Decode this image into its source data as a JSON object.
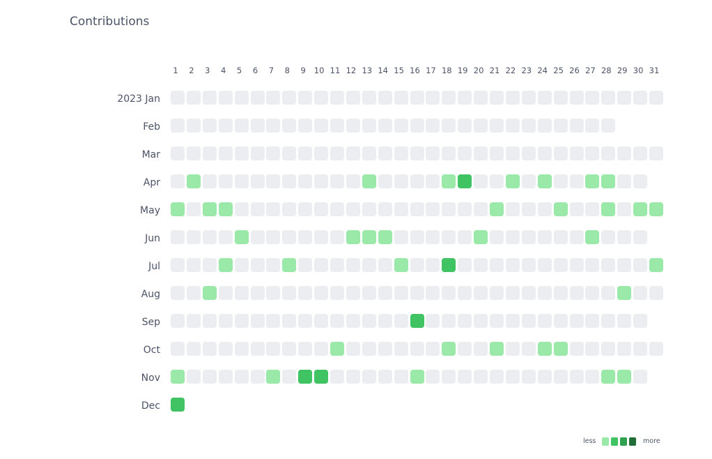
{
  "title": "Contributions",
  "days": [
    "1",
    "2",
    "3",
    "4",
    "5",
    "6",
    "7",
    "8",
    "9",
    "10",
    "11",
    "12",
    "13",
    "14",
    "15",
    "16",
    "17",
    "18",
    "19",
    "20",
    "21",
    "22",
    "23",
    "24",
    "25",
    "26",
    "27",
    "28",
    "29",
    "30",
    "31"
  ],
  "level_colors": [
    "#ebedf0",
    "#9be9a8",
    "#40c463",
    "#30a14e",
    "#216e39"
  ],
  "months": [
    {
      "label": "2023 Jan",
      "levels": [
        0,
        0,
        0,
        0,
        0,
        0,
        0,
        0,
        0,
        0,
        0,
        0,
        0,
        0,
        0,
        0,
        0,
        0,
        0,
        0,
        0,
        0,
        0,
        0,
        0,
        0,
        0,
        0,
        0,
        0,
        0
      ]
    },
    {
      "label": "Feb",
      "levels": [
        0,
        0,
        0,
        0,
        0,
        0,
        0,
        0,
        0,
        0,
        0,
        0,
        0,
        0,
        0,
        0,
        0,
        0,
        0,
        0,
        0,
        0,
        0,
        0,
        0,
        0,
        0,
        0
      ]
    },
    {
      "label": "Mar",
      "levels": [
        0,
        0,
        0,
        0,
        0,
        0,
        0,
        0,
        0,
        0,
        0,
        0,
        0,
        0,
        0,
        0,
        0,
        0,
        0,
        0,
        0,
        0,
        0,
        0,
        0,
        0,
        0,
        0,
        0,
        0,
        0
      ]
    },
    {
      "label": "Apr",
      "levels": [
        0,
        1,
        0,
        0,
        0,
        0,
        0,
        0,
        0,
        0,
        0,
        0,
        1,
        0,
        0,
        0,
        0,
        1,
        2,
        0,
        0,
        1,
        0,
        1,
        0,
        0,
        1,
        1,
        0,
        0
      ]
    },
    {
      "label": "May",
      "levels": [
        1,
        0,
        1,
        1,
        0,
        0,
        0,
        0,
        0,
        0,
        0,
        0,
        0,
        0,
        0,
        0,
        0,
        0,
        0,
        0,
        1,
        0,
        0,
        0,
        1,
        0,
        0,
        1,
        0,
        1,
        1
      ]
    },
    {
      "label": "Jun",
      "levels": [
        0,
        0,
        0,
        0,
        1,
        0,
        0,
        0,
        0,
        0,
        0,
        1,
        1,
        1,
        0,
        0,
        0,
        0,
        0,
        1,
        0,
        0,
        0,
        0,
        0,
        0,
        1,
        0,
        0,
        0
      ]
    },
    {
      "label": "Jul",
      "levels": [
        0,
        0,
        0,
        1,
        0,
        0,
        0,
        1,
        0,
        0,
        0,
        0,
        0,
        0,
        1,
        0,
        0,
        2,
        0,
        0,
        0,
        0,
        0,
        0,
        0,
        0,
        0,
        0,
        0,
        0,
        1
      ]
    },
    {
      "label": "Aug",
      "levels": [
        0,
        0,
        1,
        0,
        0,
        0,
        0,
        0,
        0,
        0,
        0,
        0,
        0,
        0,
        0,
        0,
        0,
        0,
        0,
        0,
        0,
        0,
        0,
        0,
        0,
        0,
        0,
        0,
        1,
        0,
        0
      ]
    },
    {
      "label": "Sep",
      "levels": [
        0,
        0,
        0,
        0,
        0,
        0,
        0,
        0,
        0,
        0,
        0,
        0,
        0,
        0,
        0,
        2,
        0,
        0,
        0,
        0,
        0,
        0,
        0,
        0,
        0,
        0,
        0,
        0,
        0,
        0
      ]
    },
    {
      "label": "Oct",
      "levels": [
        0,
        0,
        0,
        0,
        0,
        0,
        0,
        0,
        0,
        0,
        1,
        0,
        0,
        0,
        0,
        0,
        0,
        1,
        0,
        0,
        1,
        0,
        0,
        1,
        1,
        0,
        0,
        0,
        0,
        0,
        0
      ]
    },
    {
      "label": "Nov",
      "levels": [
        1,
        0,
        0,
        0,
        0,
        0,
        1,
        0,
        2,
        2,
        0,
        0,
        0,
        0,
        0,
        1,
        0,
        0,
        0,
        0,
        0,
        0,
        0,
        0,
        0,
        0,
        0,
        1,
        1,
        0
      ]
    },
    {
      "label": "Dec",
      "levels": [
        2
      ]
    }
  ],
  "legend": {
    "less_label": "less",
    "more_label": "more",
    "swatches": [
      "#9be9a8",
      "#40c463",
      "#30a14e",
      "#216e39"
    ]
  }
}
